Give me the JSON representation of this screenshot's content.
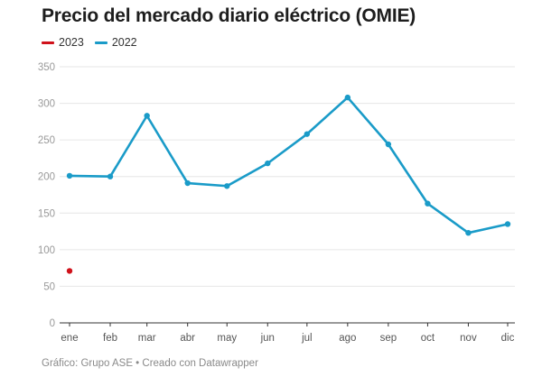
{
  "chart_data": {
    "type": "line",
    "title": "Precio del mercado diario eléctrico (OMIE)",
    "xlabel": "",
    "ylabel": "",
    "categories": [
      "ene",
      "feb",
      "mar",
      "abr",
      "may",
      "jun",
      "jul",
      "ago",
      "sep",
      "oct",
      "nov",
      "dic"
    ],
    "yticks": [
      "0",
      "50",
      "100",
      "150",
      "200",
      "250",
      "300",
      "350"
    ],
    "ylim": [
      0,
      350
    ],
    "grid": true,
    "legend_position": "top-left",
    "series": [
      {
        "name": "2023",
        "color": "#d0121b",
        "values": [
          71,
          null,
          null,
          null,
          null,
          null,
          null,
          null,
          null,
          null,
          null,
          null
        ]
      },
      {
        "name": "2022",
        "color": "#1a9bc8",
        "values": [
          201,
          200,
          283,
          191,
          187,
          218,
          258,
          308,
          244,
          163,
          123,
          135
        ]
      }
    ],
    "footer": "Gráfico: Grupo ASE • Creado con Datawrapper"
  }
}
